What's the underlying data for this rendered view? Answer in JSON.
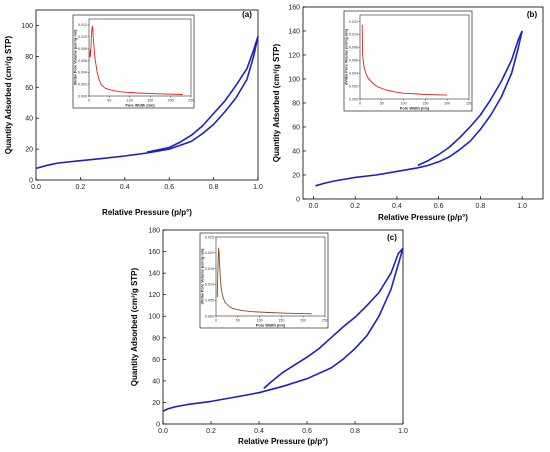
{
  "chart_data": [
    {
      "panel": "(a)",
      "type": "line",
      "xlabel": "Relative Pressure (p/p°)",
      "ylabel": "Quantity Adsorbed (cm³/g STP)",
      "xlim": [
        0.0,
        1.0
      ],
      "ylim": [
        0,
        110
      ],
      "xticks": [
        0.0,
        0.2,
        0.4,
        0.6,
        0.8,
        1.0
      ],
      "yticks": [
        0,
        20,
        40,
        60,
        80,
        100
      ],
      "series_color": "#1f1fc8",
      "adsorption": [
        [
          0.0,
          7.5
        ],
        [
          0.05,
          9.5
        ],
        [
          0.1,
          11
        ],
        [
          0.2,
          12.5
        ],
        [
          0.3,
          14
        ],
        [
          0.4,
          15.5
        ],
        [
          0.5,
          17.5
        ],
        [
          0.6,
          20
        ],
        [
          0.65,
          22.5
        ],
        [
          0.7,
          25
        ],
        [
          0.75,
          30
        ],
        [
          0.8,
          36
        ],
        [
          0.85,
          44
        ],
        [
          0.9,
          53
        ],
        [
          0.95,
          65
        ],
        [
          0.98,
          80
        ],
        [
          1.0,
          93
        ]
      ],
      "desorption": [
        [
          1.0,
          93
        ],
        [
          0.98,
          84
        ],
        [
          0.95,
          72
        ],
        [
          0.9,
          61
        ],
        [
          0.85,
          51
        ],
        [
          0.8,
          43
        ],
        [
          0.75,
          35
        ],
        [
          0.7,
          29
        ],
        [
          0.65,
          24.5
        ],
        [
          0.6,
          21
        ],
        [
          0.5,
          18
        ]
      ],
      "inset": {
        "xlabel": "Pore Width (nm)",
        "ylabel": "dV/dw Pore Volume (cm³/g·nm)",
        "xlim": [
          0,
          250
        ],
        "ylim": [
          0,
          0.013
        ],
        "xticks": [
          0,
          50,
          100,
          150,
          200,
          250
        ],
        "yticks": [
          0.0,
          0.002,
          0.004,
          0.006,
          0.008,
          0.01,
          0.012
        ],
        "ytick_labels": [
          "0.000",
          "0.002",
          "0.004",
          "0.006",
          "0.008",
          "0.010",
          "0.012"
        ],
        "color": "#e02020",
        "points": [
          [
            2,
            0.0065
          ],
          [
            3,
            0.0078
          ],
          [
            3.5,
            0.0067
          ],
          [
            4,
            0.0073
          ],
          [
            5,
            0.0085
          ],
          [
            6,
            0.01
          ],
          [
            7,
            0.0112
          ],
          [
            8,
            0.0118
          ],
          [
            9,
            0.0115
          ],
          [
            10,
            0.0104
          ],
          [
            12,
            0.0085
          ],
          [
            15,
            0.0062
          ],
          [
            20,
            0.004
          ],
          [
            25,
            0.0027
          ],
          [
            30,
            0.0019
          ],
          [
            40,
            0.0013
          ],
          [
            60,
            0.0009
          ],
          [
            80,
            0.0007
          ],
          [
            120,
            0.0005
          ],
          [
            180,
            0.00035
          ],
          [
            230,
            0.00025
          ]
        ]
      }
    },
    {
      "panel": "(b)",
      "type": "line",
      "xlabel": "Relative Pressure (p/p°)",
      "ylabel": "Quantity Adsorbed (cm³/g STP)",
      "xlim": [
        -0.05,
        1.1
      ],
      "ylim": [
        0,
        160
      ],
      "xticks": [
        0.0,
        0.2,
        0.4,
        0.6,
        0.8,
        1.0
      ],
      "yticks": [
        0,
        20,
        40,
        60,
        80,
        100,
        120,
        140,
        160
      ],
      "series_color": "#1f1fc8",
      "adsorption": [
        [
          0.01,
          11
        ],
        [
          0.05,
          13
        ],
        [
          0.1,
          15
        ],
        [
          0.2,
          18
        ],
        [
          0.3,
          20
        ],
        [
          0.4,
          23
        ],
        [
          0.5,
          26
        ],
        [
          0.55,
          28
        ],
        [
          0.6,
          31
        ],
        [
          0.65,
          35
        ],
        [
          0.7,
          41
        ],
        [
          0.75,
          48
        ],
        [
          0.8,
          58
        ],
        [
          0.85,
          70
        ],
        [
          0.9,
          85
        ],
        [
          0.95,
          105
        ],
        [
          0.98,
          125
        ],
        [
          1.0,
          140
        ]
      ],
      "desorption": [
        [
          1.0,
          140
        ],
        [
          0.98,
          132
        ],
        [
          0.95,
          116
        ],
        [
          0.9,
          98
        ],
        [
          0.85,
          83
        ],
        [
          0.8,
          70
        ],
        [
          0.75,
          60
        ],
        [
          0.7,
          51
        ],
        [
          0.65,
          43
        ],
        [
          0.6,
          37
        ],
        [
          0.55,
          32
        ],
        [
          0.5,
          28
        ]
      ],
      "inset": {
        "xlabel": "Pore Width (nm)",
        "ylabel": "dV/dw Pore Volume (cm³/g·nm)",
        "xlim": [
          0,
          250
        ],
        "ylim": [
          0,
          0.013
        ],
        "xticks": [
          0,
          50,
          100,
          150,
          200,
          250
        ],
        "yticks": [
          0.0,
          0.002,
          0.004,
          0.006,
          0.008,
          0.01,
          0.012
        ],
        "ytick_labels": [
          "0.000",
          "0.002",
          "0.004",
          "0.006",
          "0.008",
          "0.010",
          "0.012"
        ],
        "color": "#e02020",
        "points": [
          [
            5,
            0.0115
          ],
          [
            5.5,
            0.009
          ],
          [
            6,
            0.007
          ],
          [
            8,
            0.0055
          ],
          [
            10,
            0.0047
          ],
          [
            15,
            0.0037
          ],
          [
            20,
            0.0031
          ],
          [
            30,
            0.0024
          ],
          [
            40,
            0.0019
          ],
          [
            60,
            0.0014
          ],
          [
            80,
            0.0011
          ],
          [
            100,
            0.0009
          ],
          [
            150,
            0.0007
          ],
          [
            200,
            0.0006
          ]
        ]
      }
    },
    {
      "panel": "(c)",
      "type": "line",
      "xlabel": "Relative Pressure (p/p°)",
      "ylabel": "Quantity Adsorbed (cm³/g STP)",
      "xlim": [
        0.0,
        1.0
      ],
      "ylim": [
        0,
        180
      ],
      "xticks": [
        0.0,
        0.2,
        0.4,
        0.6,
        0.8,
        1.0
      ],
      "yticks": [
        0,
        20,
        40,
        60,
        80,
        100,
        120,
        140,
        160,
        180
      ],
      "series_color": "#1f1fc8",
      "adsorption": [
        [
          0.0,
          12
        ],
        [
          0.02,
          14
        ],
        [
          0.05,
          16
        ],
        [
          0.1,
          18
        ],
        [
          0.2,
          21
        ],
        [
          0.3,
          25
        ],
        [
          0.4,
          29
        ],
        [
          0.5,
          35
        ],
        [
          0.6,
          42
        ],
        [
          0.7,
          52
        ],
        [
          0.75,
          60
        ],
        [
          0.8,
          70
        ],
        [
          0.85,
          82
        ],
        [
          0.9,
          100
        ],
        [
          0.95,
          125
        ],
        [
          0.98,
          148
        ],
        [
          1.0,
          163
        ]
      ],
      "desorption": [
        [
          1.0,
          163
        ],
        [
          0.98,
          158
        ],
        [
          0.95,
          140
        ],
        [
          0.9,
          122
        ],
        [
          0.85,
          110
        ],
        [
          0.8,
          99
        ],
        [
          0.75,
          90
        ],
        [
          0.7,
          80
        ],
        [
          0.65,
          70
        ],
        [
          0.6,
          62
        ],
        [
          0.55,
          55
        ],
        [
          0.5,
          48
        ],
        [
          0.45,
          39
        ],
        [
          0.42,
          33
        ]
      ],
      "inset": {
        "xlabel": "Pore Width (nm)",
        "ylabel": "dV/dw Pore Volume (cm³/g·nm)",
        "xlim": [
          0,
          250
        ],
        "ylim": [
          0,
          0.025
        ],
        "xticks": [
          0,
          50,
          100,
          150,
          200,
          250
        ],
        "yticks": [
          0.0,
          0.005,
          0.01,
          0.015,
          0.02,
          0.025
        ],
        "ytick_labels": [
          "0.000",
          "0.005",
          "0.010",
          "0.015",
          "0.020",
          "0.025"
        ],
        "color": "#8b4a1a",
        "points": [
          [
            3,
            0.006
          ],
          [
            4,
            0.012
          ],
          [
            5,
            0.018
          ],
          [
            6,
            0.0215
          ],
          [
            7,
            0.02
          ],
          [
            8,
            0.0165
          ],
          [
            10,
            0.012
          ],
          [
            12,
            0.0088
          ],
          [
            15,
            0.0065
          ],
          [
            20,
            0.0045
          ],
          [
            30,
            0.003
          ],
          [
            40,
            0.0023
          ],
          [
            60,
            0.0017
          ],
          [
            80,
            0.0014
          ],
          [
            120,
            0.0011
          ],
          [
            160,
            0.0009
          ],
          [
            220,
            0.0007
          ]
        ]
      }
    }
  ]
}
